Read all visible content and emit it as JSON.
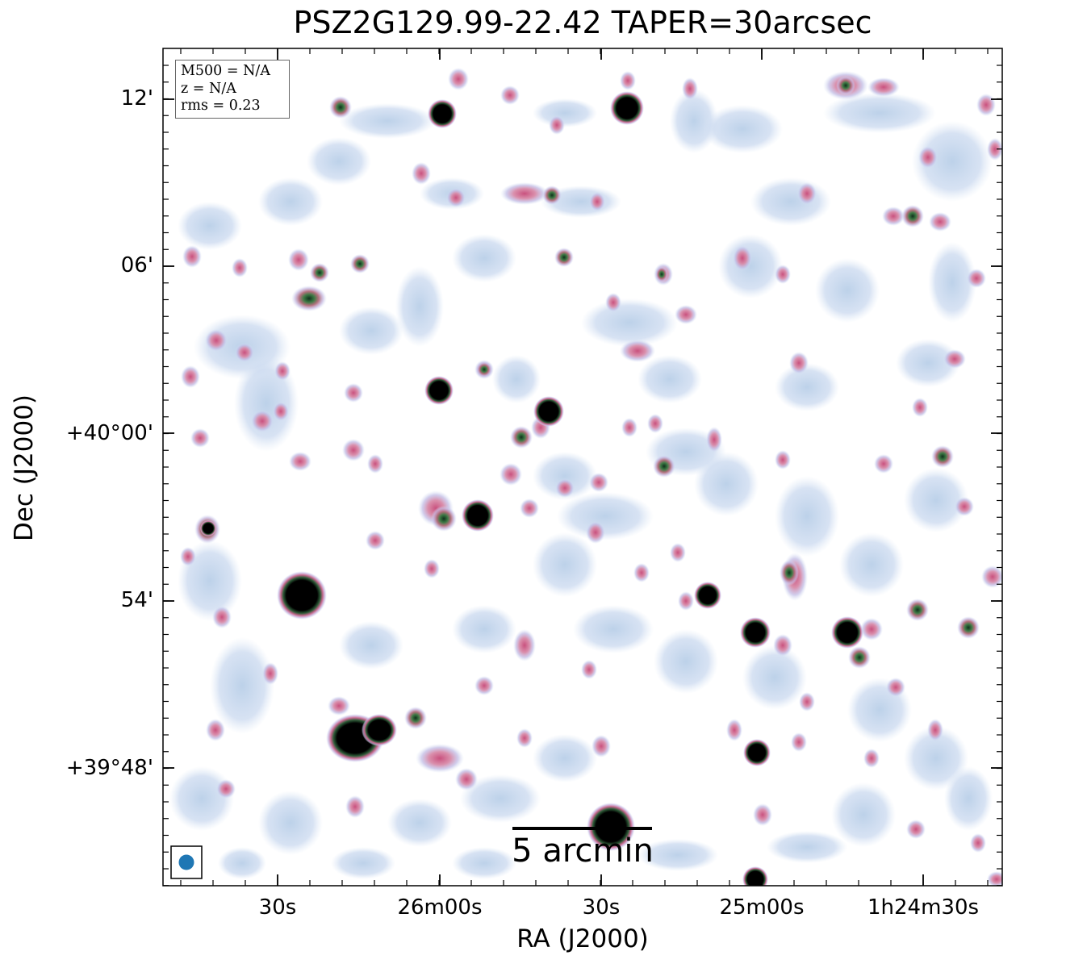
{
  "title": "PSZ2G129.99-22.42 TAPER=30arcsec",
  "xlabel": "RA (J2000)",
  "ylabel": "Dec (J2000)",
  "x_ticks": [
    "30s",
    "26m00s",
    "30s",
    "25m00s",
    "1h24m30s"
  ],
  "y_ticks": [
    "12'",
    "06'",
    "+40°00'",
    "54'",
    "+39°48'"
  ],
  "info": {
    "m500": "M500 = N/A",
    "z": "z = N/A",
    "rms": "rms = 0.23"
  },
  "scale_bar_label": "5 arcmin",
  "colors": {
    "background": "#ffffff",
    "faint_emission": "#b9cfe8",
    "medium_emission": "#d88aa8",
    "bright_emission": "#2f6a3c",
    "source_core": "#000000",
    "beam": "#1f77b4"
  },
  "icons": [
    "beam-ellipse-icon"
  ]
}
